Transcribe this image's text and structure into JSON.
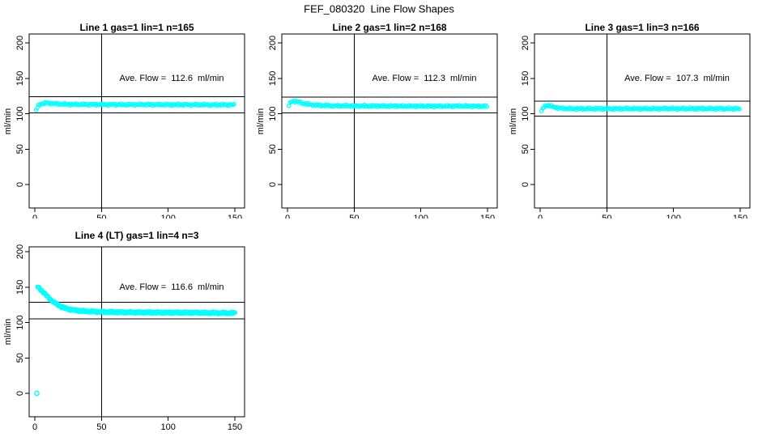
{
  "figure": {
    "title": "FEF_080320  Line Flow Shapes"
  },
  "chart_data": [
    {
      "type": "scatter",
      "title": "Line 1 gas=1 lin=1 n=165",
      "gas": 1,
      "lin": 1,
      "n": 165,
      "annotation": "Ave. Flow =  112.6  ml/min",
      "ave_flow": 112.6,
      "ylabel": "ml/min",
      "xlabel": "",
      "x_ticks": [
        0,
        50,
        100,
        150
      ],
      "y_ticks": [
        0,
        50,
        100,
        150,
        200
      ],
      "xlim": [
        -5,
        157
      ],
      "ylim": [
        -33,
        212
      ],
      "ref_line_upper": 123.9,
      "ref_line_lower": 101.3,
      "vline_x": 50,
      "marker": "open-circle",
      "color": "#00FFFF",
      "profile": [
        [
          1,
          104.5
        ],
        [
          2,
          109
        ],
        [
          3,
          112
        ],
        [
          4,
          113.5
        ],
        [
          6,
          114.5
        ],
        [
          9,
          115
        ],
        [
          13,
          114.5
        ],
        [
          18,
          113.8
        ],
        [
          25,
          113.2
        ],
        [
          40,
          113
        ],
        [
          60,
          112.9
        ],
        [
          90,
          112.8
        ],
        [
          120,
          112.7
        ],
        [
          150,
          112.5
        ]
      ],
      "outliers": []
    },
    {
      "type": "scatter",
      "title": "Line 2 gas=1 lin=2 n=168",
      "gas": 1,
      "lin": 2,
      "n": 168,
      "annotation": "Ave. Flow =  112.3  ml/min",
      "ave_flow": 112.3,
      "ylabel": "ml/min",
      "xlabel": "",
      "x_ticks": [
        0,
        50,
        100,
        150
      ],
      "y_ticks": [
        0,
        50,
        100,
        150,
        200
      ],
      "xlim": [
        -5,
        157
      ],
      "ylim": [
        -33,
        212
      ],
      "ref_line_upper": 123.5,
      "ref_line_lower": 101.1,
      "vline_x": 50,
      "marker": "open-circle",
      "color": "#00FFFF",
      "profile": [
        [
          1,
          112
        ],
        [
          2,
          115
        ],
        [
          3,
          117
        ],
        [
          5,
          118
        ],
        [
          7,
          117
        ],
        [
          10,
          115.5
        ],
        [
          14,
          113.8
        ],
        [
          18,
          112.8
        ],
        [
          25,
          111.8
        ],
        [
          35,
          111.2
        ],
        [
          50,
          111
        ],
        [
          80,
          110.8
        ],
        [
          110,
          110.6
        ],
        [
          130,
          110.8
        ],
        [
          150,
          110.4
        ]
      ],
      "outliers": []
    },
    {
      "type": "scatter",
      "title": "Line 3 gas=1 lin=3 n=166",
      "gas": 1,
      "lin": 3,
      "n": 166,
      "annotation": "Ave. Flow =  107.3  ml/min",
      "ave_flow": 107.3,
      "ylabel": "ml/min",
      "xlabel": "",
      "x_ticks": [
        0,
        50,
        100,
        150
      ],
      "y_ticks": [
        0,
        50,
        100,
        150,
        200
      ],
      "xlim": [
        -5,
        157
      ],
      "ylim": [
        -33,
        212
      ],
      "ref_line_upper": 118.0,
      "ref_line_lower": 96.6,
      "vline_x": 50,
      "marker": "open-circle",
      "color": "#00FFFF",
      "profile": [
        [
          1,
          103.5
        ],
        [
          2,
          107
        ],
        [
          3,
          110
        ],
        [
          5,
          112
        ],
        [
          7,
          111.5
        ],
        [
          10,
          109.5
        ],
        [
          14,
          108
        ],
        [
          20,
          107.2
        ],
        [
          30,
          107
        ],
        [
          50,
          107
        ],
        [
          80,
          107.1
        ],
        [
          110,
          107.2
        ],
        [
          150,
          107
        ]
      ],
      "outliers": []
    },
    {
      "type": "scatter",
      "title": "Line 4 (LT) gas=1 lin=4 n=3",
      "gas": 1,
      "lin": 4,
      "n": 3,
      "annotation": "Ave. Flow =  116.6  ml/min",
      "ave_flow": 116.6,
      "ylabel": "ml/min",
      "xlabel": "",
      "x_ticks": [
        0,
        50,
        100,
        150
      ],
      "y_ticks": [
        0,
        50,
        100,
        150,
        200
      ],
      "xlim": [
        -5,
        157
      ],
      "ylim": [
        -33,
        212
      ],
      "ref_line_upper": 128.3,
      "ref_line_lower": 104.9,
      "vline_x": 50,
      "marker": "open-circle",
      "color": "#00FFFF",
      "profile": [
        [
          2,
          151
        ],
        [
          3,
          149
        ],
        [
          4,
          147
        ],
        [
          5,
          145.5
        ],
        [
          6,
          143.5
        ],
        [
          7,
          141.5
        ],
        [
          8,
          139.5
        ],
        [
          9,
          137.5
        ],
        [
          10,
          135.5
        ],
        [
          12,
          132
        ],
        [
          14,
          129
        ],
        [
          16,
          126.5
        ],
        [
          18,
          124.2
        ],
        [
          20,
          122.2
        ],
        [
          22,
          120.7
        ],
        [
          25,
          119
        ],
        [
          28,
          117.8
        ],
        [
          32,
          116.8
        ],
        [
          36,
          116.2
        ],
        [
          40,
          115.7
        ],
        [
          46,
          115.2
        ],
        [
          55,
          114.8
        ],
        [
          65,
          114.5
        ],
        [
          80,
          114.2
        ],
        [
          95,
          114
        ],
        [
          110,
          113.9
        ],
        [
          125,
          113.7
        ],
        [
          150,
          113.2
        ]
      ],
      "outliers": [
        [
          1.5,
          0
        ]
      ]
    }
  ]
}
